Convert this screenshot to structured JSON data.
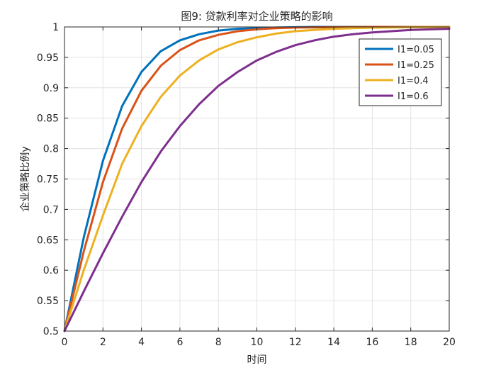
{
  "chart_data": {
    "type": "line",
    "title": "图9: 贷款利率对企业策略的影响",
    "xlabel": "时间",
    "ylabel": "企业策略比例y",
    "xlim": [
      0,
      20
    ],
    "ylim": [
      0.5,
      1.0
    ],
    "xticks": [
      "0",
      "2",
      "4",
      "6",
      "8",
      "10",
      "12",
      "14",
      "16",
      "18",
      "20"
    ],
    "yticks": [
      "0.5",
      "0.55",
      "0.6",
      "0.65",
      "0.7",
      "0.75",
      "0.8",
      "0.85",
      "0.9",
      "0.95",
      "1"
    ],
    "grid": true,
    "legend_position": "top-right",
    "series": [
      {
        "name": "I1=0.05",
        "color": "#0072BD",
        "x": [
          0,
          1,
          2,
          3,
          4,
          5,
          6,
          7,
          8,
          9,
          10,
          11,
          12,
          13,
          14,
          15,
          16,
          17,
          18,
          19,
          20
        ],
        "y": [
          0.5,
          0.654,
          0.78,
          0.87,
          0.926,
          0.96,
          0.978,
          0.988,
          0.994,
          0.997,
          0.998,
          0.999,
          0.9995,
          1.0,
          1.0,
          1.0,
          1.0,
          1.0,
          1.0,
          1.0,
          1.0
        ]
      },
      {
        "name": "I1=0.25",
        "color": "#D95319",
        "x": [
          0,
          1,
          2,
          3,
          4,
          5,
          6,
          7,
          8,
          9,
          10,
          11,
          12,
          13,
          14,
          15,
          16,
          17,
          18,
          19,
          20
        ],
        "y": [
          0.5,
          0.631,
          0.745,
          0.833,
          0.895,
          0.936,
          0.962,
          0.978,
          0.987,
          0.993,
          0.996,
          0.998,
          0.999,
          0.9993,
          0.9996,
          0.9998,
          1.0,
          1.0,
          1.0,
          1.0,
          1.0
        ]
      },
      {
        "name": "I1=0.4",
        "color": "#EDB120",
        "x": [
          0,
          1,
          2,
          3,
          4,
          5,
          6,
          7,
          8,
          9,
          10,
          11,
          12,
          13,
          14,
          15,
          16,
          17,
          18,
          19,
          20
        ],
        "y": [
          0.5,
          0.6,
          0.69,
          0.775,
          0.837,
          0.885,
          0.92,
          0.945,
          0.963,
          0.975,
          0.983,
          0.989,
          0.993,
          0.995,
          0.997,
          0.998,
          0.9987,
          0.9992,
          0.9995,
          0.9997,
          0.9998
        ]
      },
      {
        "name": "I1=0.6",
        "color": "#7E2F8E",
        "x": [
          0,
          1,
          2,
          3,
          4,
          5,
          6,
          7,
          8,
          9,
          10,
          11,
          12,
          13,
          14,
          15,
          16,
          17,
          18,
          19,
          20
        ],
        "y": [
          0.5,
          0.565,
          0.628,
          0.688,
          0.745,
          0.795,
          0.837,
          0.873,
          0.903,
          0.926,
          0.945,
          0.959,
          0.97,
          0.978,
          0.984,
          0.988,
          0.991,
          0.993,
          0.995,
          0.996,
          0.997
        ]
      }
    ]
  }
}
